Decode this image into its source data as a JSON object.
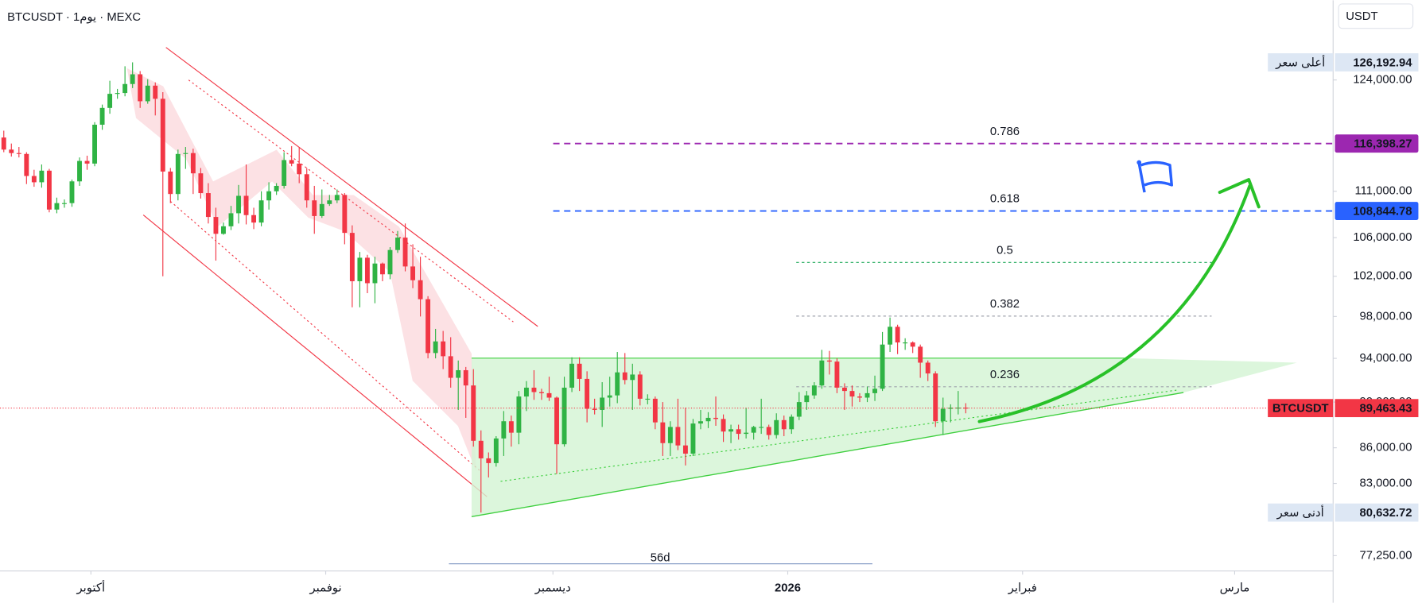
{
  "chart_data": {
    "type": "candlestick",
    "title": "BTCUSDT · 1يوم · MEXC",
    "currency": "USDT",
    "log_scale": true,
    "up_color": "#2fb344",
    "down_color": "#f23645",
    "ylim": [
      76076,
      134230
    ],
    "yticks": [
      {
        "value": 124000,
        "label": "124,000.00"
      },
      {
        "value": 111000,
        "label": "111,000.00"
      },
      {
        "value": 106000,
        "label": "106,000.00"
      },
      {
        "value": 102000,
        "label": "102,000.00"
      },
      {
        "value": 98000,
        "label": "98,000.00"
      },
      {
        "value": 94000,
        "label": "94,000.00"
      },
      {
        "value": 90000,
        "label": "90,000.00"
      },
      {
        "value": 86000,
        "label": "86,000.00"
      },
      {
        "value": 83000,
        "label": "83,000.00"
      },
      {
        "value": 77250,
        "label": "77,250.00"
      }
    ],
    "xlim": [
      0,
      176
    ],
    "xticks": [
      {
        "value": 12,
        "label": "أكتوبر"
      },
      {
        "value": 43,
        "label": "نوفمبر"
      },
      {
        "value": 73,
        "label": "ديسمبر"
      },
      {
        "value": 104,
        "label": "2026"
      },
      {
        "value": 135,
        "label": "فبراير"
      },
      {
        "value": 163,
        "label": "مارس"
      }
    ],
    "candles": [
      [
        117100,
        117900,
        115400,
        115700
      ],
      [
        115700,
        116400,
        114900,
        115300
      ],
      [
        115300,
        116000,
        114800,
        115200
      ],
      [
        115200,
        115400,
        111800,
        112700
      ],
      [
        112700,
        113400,
        111500,
        112000
      ],
      [
        112000,
        114000,
        111400,
        113300
      ],
      [
        113300,
        113500,
        108700,
        109000
      ],
      [
        109000,
        110300,
        108600,
        109700
      ],
      [
        109700,
        110100,
        109200,
        109700
      ],
      [
        109700,
        112300,
        109300,
        112100
      ],
      [
        112100,
        114800,
        111600,
        114400
      ],
      [
        114400,
        115000,
        113400,
        114100
      ],
      [
        114100,
        118900,
        113800,
        118600
      ],
      [
        118600,
        121000,
        118000,
        120600
      ],
      [
        120600,
        123900,
        119900,
        122300
      ],
      [
        122300,
        122900,
        121700,
        122400
      ],
      [
        122400,
        125700,
        122000,
        123500
      ],
      [
        123500,
        126192.94,
        123000,
        124700
      ],
      [
        124700,
        125100,
        120600,
        121400
      ],
      [
        121400,
        124100,
        121100,
        123300
      ],
      [
        123300,
        123700,
        119700,
        121700
      ],
      [
        121700,
        122500,
        102000,
        113200
      ],
      [
        113200,
        113600,
        109700,
        110700
      ],
      [
        110700,
        115700,
        110000,
        115200
      ],
      [
        115200,
        116000,
        113500,
        115300
      ],
      [
        115300,
        115800,
        110700,
        113000
      ],
      [
        113000,
        113600,
        110200,
        110800
      ],
      [
        110800,
        111900,
        107500,
        108200
      ],
      [
        108200,
        109200,
        103600,
        106400
      ],
      [
        106400,
        107600,
        106300,
        107200
      ],
      [
        107200,
        109400,
        106800,
        108600
      ],
      [
        108600,
        111700,
        107500,
        110500
      ],
      [
        110500,
        114000,
        107400,
        108400
      ],
      [
        108400,
        109200,
        106900,
        107600
      ],
      [
        107600,
        111000,
        107200,
        110000
      ],
      [
        110000,
        112000,
        109000,
        111000
      ],
      [
        111000,
        111900,
        110600,
        111600
      ],
      [
        111600,
        115400,
        111300,
        114500
      ],
      [
        114500,
        116100,
        113800,
        114100
      ],
      [
        114100,
        116000,
        111900,
        112900
      ],
      [
        112900,
        113600,
        109200,
        110000
      ],
      [
        110000,
        111600,
        106400,
        108300
      ],
      [
        108300,
        111200,
        108100,
        109600
      ],
      [
        109600,
        110600,
        109400,
        110000
      ],
      [
        110000,
        111200,
        109700,
        110600
      ],
      [
        110600,
        110800,
        105300,
        106500
      ],
      [
        106500,
        107300,
        98900,
        101500
      ],
      [
        101500,
        104500,
        98900,
        103900
      ],
      [
        103900,
        104200,
        100300,
        101300
      ],
      [
        101300,
        104000,
        99300,
        103300
      ],
      [
        103300,
        103400,
        101500,
        102200
      ],
      [
        102200,
        105000,
        101700,
        104700
      ],
      [
        104700,
        106700,
        104400,
        106000
      ],
      [
        106000,
        107500,
        102500,
        103000
      ],
      [
        103000,
        105300,
        100800,
        101600
      ],
      [
        101600,
        104000,
        98000,
        99700
      ],
      [
        99700,
        100000,
        94000,
        94500
      ],
      [
        94500,
        96800,
        94000,
        95600
      ],
      [
        95600,
        96600,
        93000,
        94200
      ],
      [
        94200,
        96000,
        91300,
        92200
      ],
      [
        92200,
        93800,
        89300,
        92900
      ],
      [
        92900,
        93200,
        88600,
        91500
      ],
      [
        91500,
        93000,
        86100,
        86600
      ],
      [
        86600,
        87500,
        80632.72,
        85100
      ],
      [
        85100,
        85600,
        83500,
        84700
      ],
      [
        84700,
        87000,
        84400,
        86800
      ],
      [
        86800,
        89200,
        85300,
        88300
      ],
      [
        88300,
        88800,
        86100,
        87300
      ],
      [
        87300,
        91000,
        86300,
        90500
      ],
      [
        90500,
        91900,
        89200,
        91300
      ],
      [
        91300,
        92900,
        90200,
        90900
      ],
      [
        90900,
        91200,
        90200,
        90800
      ],
      [
        90800,
        92300,
        90100,
        90400
      ],
      [
        90400,
        90500,
        83800,
        86300
      ],
      [
        86300,
        92300,
        86100,
        91300
      ],
      [
        91300,
        94100,
        90900,
        93500
      ],
      [
        93500,
        94100,
        91000,
        92100
      ],
      [
        92100,
        92800,
        88200,
        89400
      ],
      [
        89400,
        90300,
        88900,
        89300
      ],
      [
        89300,
        91800,
        87800,
        90400
      ],
      [
        90400,
        92300,
        89600,
        90600
      ],
      [
        90600,
        94600,
        89900,
        92700
      ],
      [
        92700,
        94500,
        91600,
        92000
      ],
      [
        92000,
        93500,
        89300,
        92500
      ],
      [
        92500,
        92800,
        89700,
        90300
      ],
      [
        90300,
        90700,
        89800,
        90300
      ],
      [
        90300,
        90500,
        87600,
        88200
      ],
      [
        88200,
        90000,
        85300,
        86400
      ],
      [
        86400,
        88300,
        85300,
        87800
      ],
      [
        87800,
        90300,
        85800,
        86200
      ],
      [
        86200,
        89500,
        84500,
        85500
      ],
      [
        85500,
        88500,
        85300,
        88100
      ],
      [
        88100,
        89300,
        87600,
        88300
      ],
      [
        88300,
        89100,
        87700,
        88600
      ],
      [
        88600,
        90500,
        87900,
        88500
      ],
      [
        88500,
        88900,
        86500,
        87400
      ],
      [
        87400,
        88000,
        86400,
        87600
      ],
      [
        87600,
        88000,
        86700,
        87200
      ],
      [
        87200,
        89500,
        86800,
        87300
      ],
      [
        87300,
        87900,
        86700,
        87800
      ],
      [
        87800,
        90300,
        87200,
        87800
      ],
      [
        87800,
        88000,
        86700,
        87100
      ],
      [
        87100,
        89000,
        86800,
        88400
      ],
      [
        88400,
        88800,
        87000,
        87600
      ],
      [
        87600,
        88900,
        87200,
        88700
      ],
      [
        88700,
        90900,
        88400,
        90000
      ],
      [
        90000,
        91000,
        89300,
        90600
      ],
      [
        90600,
        91800,
        90300,
        91500
      ],
      [
        91500,
        94800,
        91200,
        93800
      ],
      [
        93800,
        94700,
        92500,
        93700
      ],
      [
        93700,
        94000,
        90800,
        91300
      ],
      [
        91300,
        91700,
        89300,
        91000
      ],
      [
        91000,
        91500,
        89600,
        90500
      ],
      [
        90500,
        90800,
        90000,
        90400
      ],
      [
        90400,
        91400,
        90000,
        90800
      ],
      [
        90800,
        92400,
        90100,
        91200
      ],
      [
        91200,
        96500,
        91000,
        95300
      ],
      [
        95300,
        97900,
        94600,
        97000
      ],
      [
        97000,
        97200,
        94400,
        95500
      ],
      [
        95500,
        95900,
        94800,
        95500
      ],
      [
        95500,
        95600,
        94500,
        95100
      ],
      [
        95100,
        95300,
        92200,
        93600
      ],
      [
        93600,
        93800,
        91900,
        92600
      ],
      [
        92600,
        92800,
        87800,
        88300
      ],
      [
        88300,
        90400,
        87100,
        89400
      ],
      [
        89400,
        89800,
        88200,
        89500
      ],
      [
        89500,
        91000,
        88900,
        89500
      ],
      [
        89500,
        89900,
        89000,
        89463.43
      ]
    ],
    "fib_levels": [
      {
        "level": 0.786,
        "value": 116398.27,
        "label": "116,398.27",
        "color": "#9c27b0"
      },
      {
        "level": 0.618,
        "value": 108844.78,
        "label": "108,844.78",
        "color": "#2962ff"
      },
      {
        "level": 0.5,
        "value": 103412.83,
        "color": "#22ab5c"
      },
      {
        "level": 0.382,
        "value": 98036.72,
        "color": "#a0a4ad"
      },
      {
        "level": 0.236,
        "value": 91384.93,
        "color": "#a0a4ad"
      }
    ],
    "price_labels": [
      {
        "name": "أعلى سعر",
        "value": 126192.94,
        "label": "126,192.94"
      },
      {
        "name": "BTCUSDT",
        "value": 89463.43,
        "label": "89,463.43",
        "color": "#f23645"
      },
      {
        "name": "أدنى سعر",
        "value": 80632.72,
        "label": "80,632.72"
      }
    ],
    "measure_label": "56d"
  }
}
